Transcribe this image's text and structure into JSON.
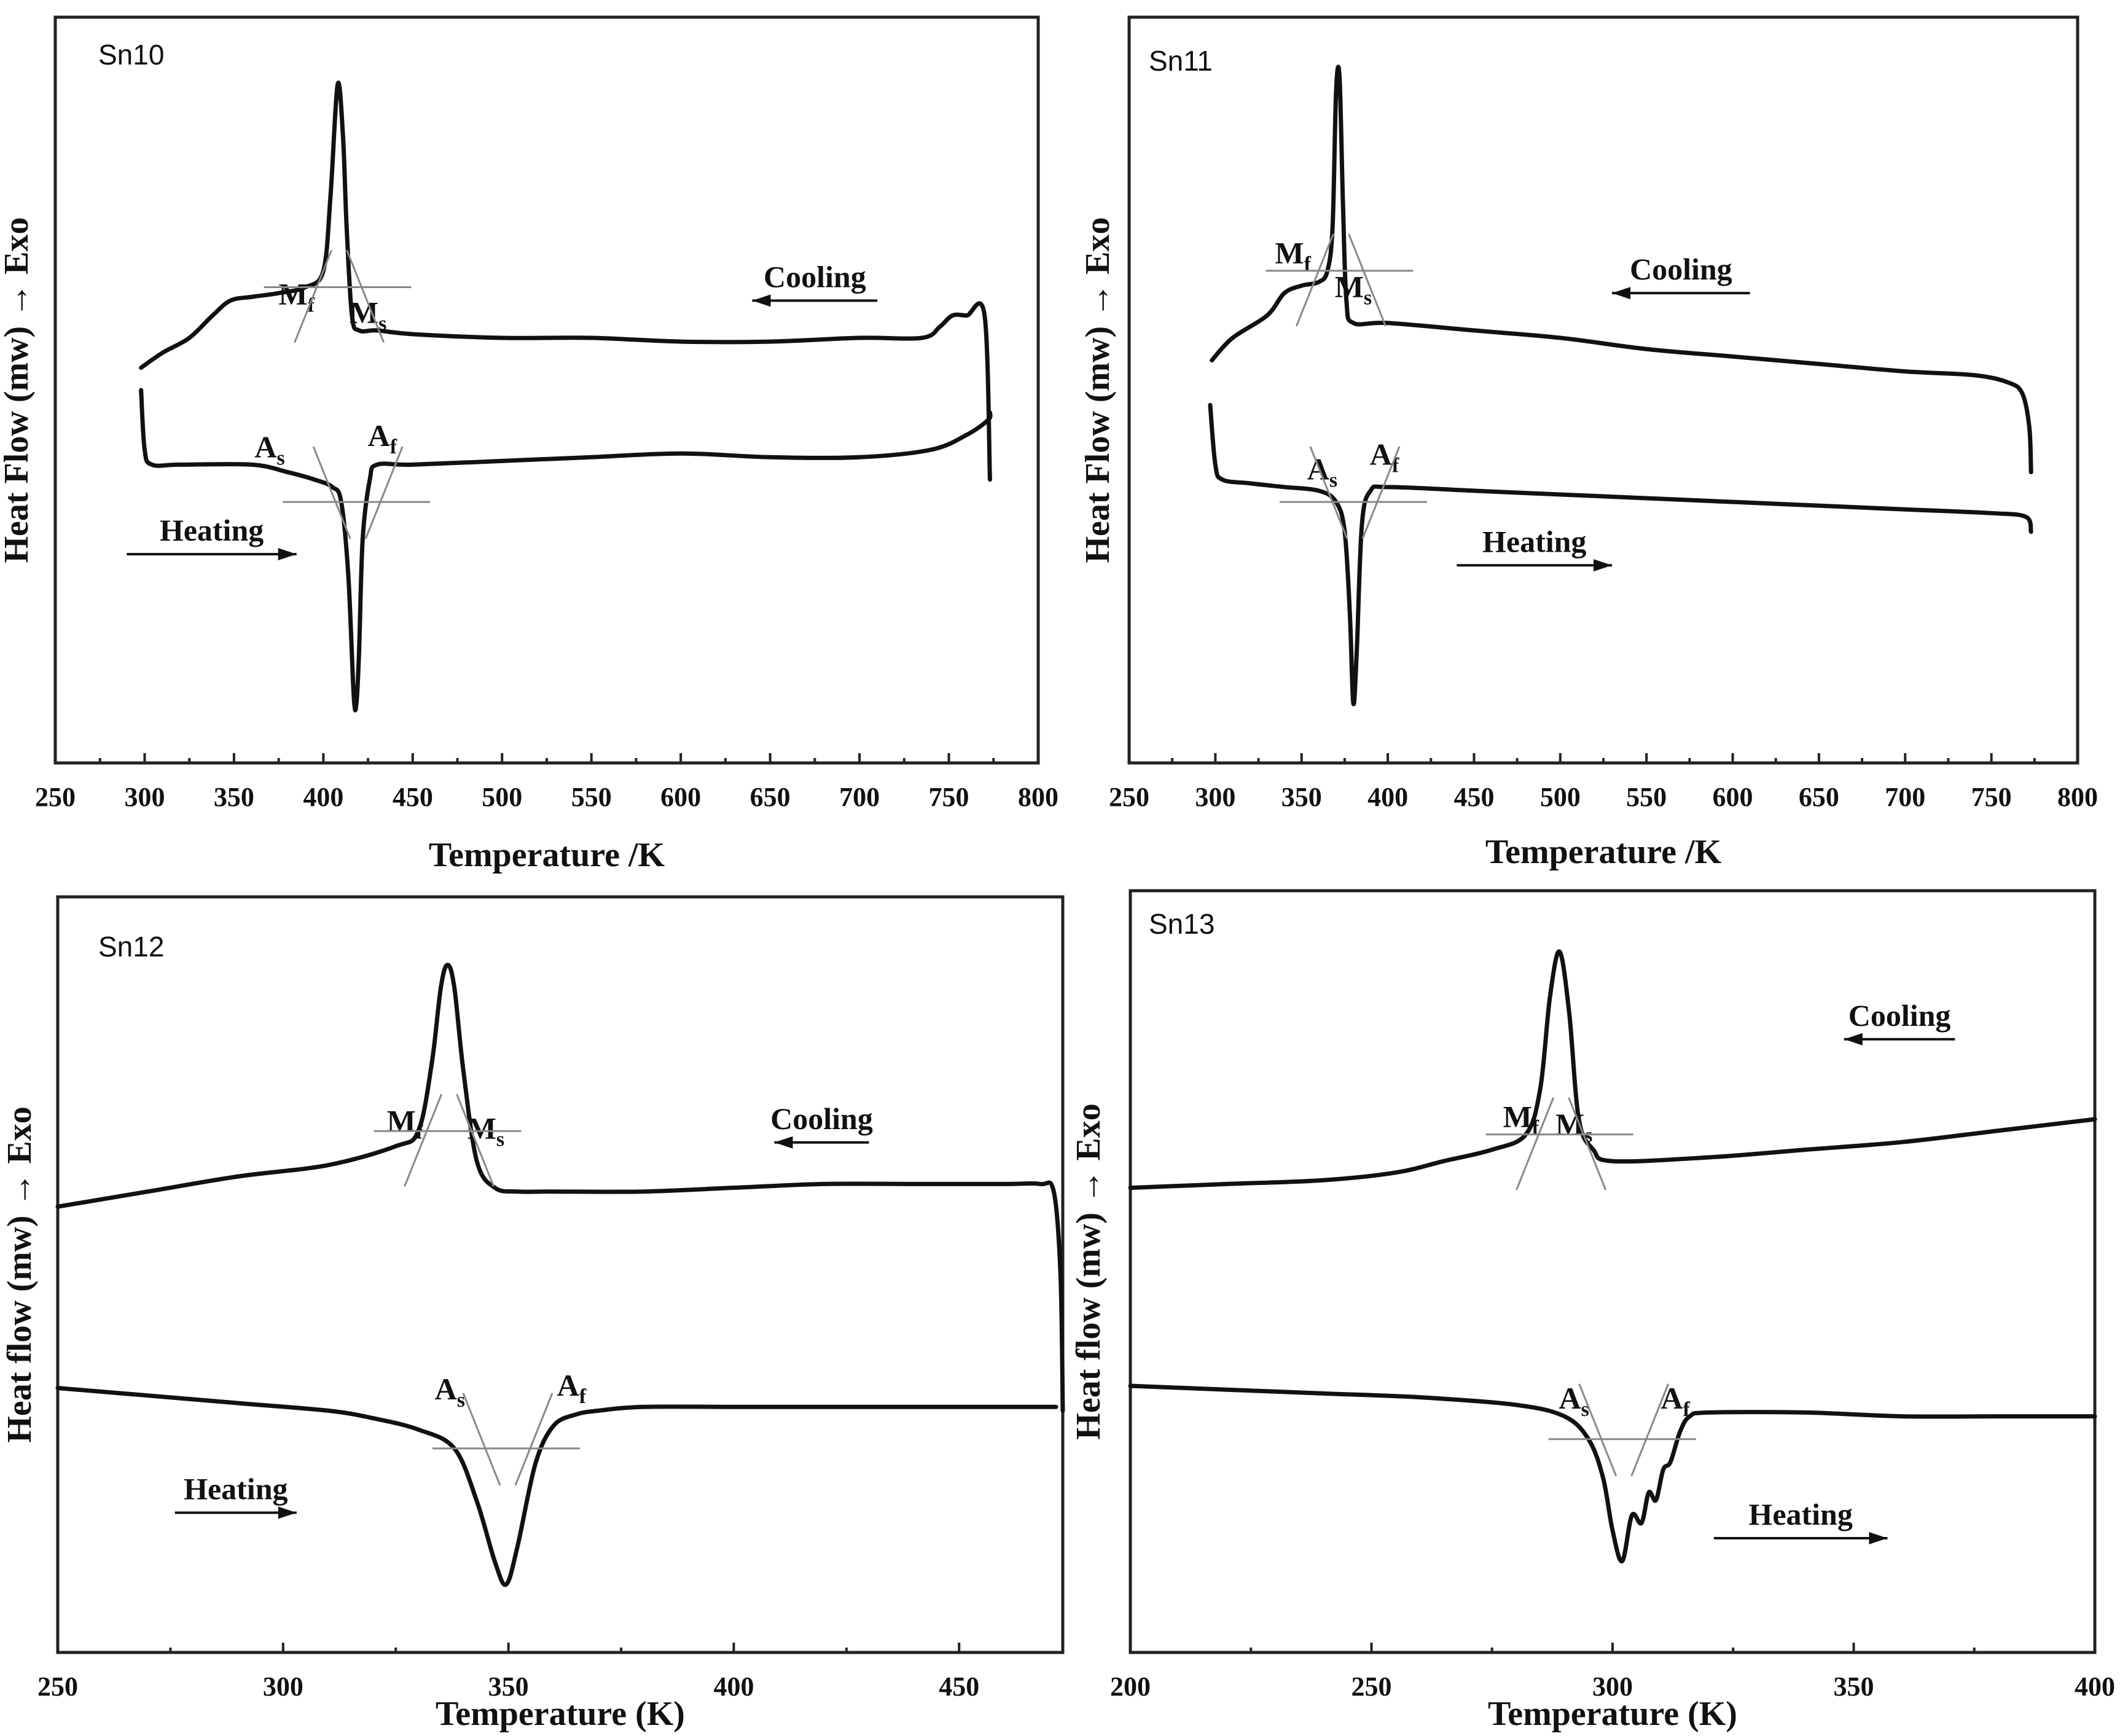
{
  "chart_data": [
    {
      "type": "line",
      "panel": "Sn10",
      "xlabel": "Temperature /K",
      "ylabel": "Heat Flow (mw) → Exo",
      "xlim": [
        250,
        800
      ],
      "xticks": [
        250,
        300,
        350,
        400,
        450,
        500,
        550,
        600,
        650,
        700,
        750,
        800
      ],
      "ylim": [
        0,
        100
      ],
      "annotations": [
        {
          "base": "M",
          "sub": "f",
          "x": 385,
          "y": 61.5
        },
        {
          "base": "M",
          "sub": "s",
          "x": 425,
          "y": 59
        },
        {
          "base": "A",
          "sub": "s",
          "x": 370,
          "y": 41
        },
        {
          "base": "A",
          "sub": "f",
          "x": 433,
          "y": 42.5
        }
      ],
      "arrows": [
        {
          "label": "Cooling",
          "direction": "left",
          "x_from": 710,
          "x_to": 640,
          "y": 62
        },
        {
          "label": "Heating",
          "direction": "right",
          "x_from": 290,
          "x_to": 385,
          "y": 28
        }
      ],
      "series": [
        {
          "name": "Cooling",
          "x": [
            298,
            310,
            325,
            338,
            348,
            360,
            375,
            390,
            400,
            404,
            408,
            411,
            413,
            416,
            420,
            430,
            450,
            500,
            550,
            600,
            650,
            700,
            735,
            745,
            752,
            760,
            770,
            773
          ],
          "y": [
            53,
            55,
            57,
            60,
            62,
            62.5,
            63,
            63.8,
            66,
            76,
            91,
            84,
            72,
            60,
            58,
            58,
            57.5,
            57,
            57,
            56.5,
            56.5,
            57,
            57,
            58.5,
            60,
            60,
            60,
            38
          ]
        },
        {
          "name": "Heating",
          "x": [
            298,
            300,
            304,
            320,
            360,
            380,
            395,
            405,
            410,
            414,
            417,
            418.5,
            420,
            422,
            426,
            430,
            450,
            500,
            550,
            600,
            650,
            700,
            740,
            760,
            772,
            773
          ],
          "y": [
            50,
            42,
            40,
            40,
            40,
            39,
            38,
            37,
            35,
            25,
            9,
            8,
            15,
            30,
            38,
            40,
            40,
            40.5,
            41,
            41.5,
            41,
            41,
            42,
            44,
            46,
            47
          ]
        }
      ]
    },
    {
      "type": "line",
      "panel": "Sn11",
      "xlabel": "Temperature /K",
      "ylabel": "Heat Flow (mw) → Exo",
      "xlim": [
        250,
        800
      ],
      "xticks": [
        250,
        300,
        350,
        400,
        450,
        500,
        550,
        600,
        650,
        700,
        750,
        800
      ],
      "ylim": [
        0,
        100
      ],
      "annotations": [
        {
          "base": "M",
          "sub": "f",
          "x": 345,
          "y": 67
        },
        {
          "base": "M",
          "sub": "s",
          "x": 380,
          "y": 62.5
        },
        {
          "base": "A",
          "sub": "s",
          "x": 362,
          "y": 38
        },
        {
          "base": "A",
          "sub": "f",
          "x": 398,
          "y": 40
        }
      ],
      "arrows": [
        {
          "label": "Cooling",
          "direction": "left",
          "x_from": 610,
          "x_to": 530,
          "y": 63
        },
        {
          "label": "Heating",
          "direction": "right",
          "x_from": 440,
          "x_to": 530,
          "y": 26.5
        }
      ],
      "series": [
        {
          "name": "Cooling",
          "x": [
            298,
            310,
            330,
            340,
            350,
            360,
            365,
            368,
            370,
            372,
            374,
            376,
            380,
            400,
            450,
            500,
            550,
            600,
            650,
            700,
            740,
            760,
            768,
            772,
            773
          ],
          "y": [
            54,
            57,
            60,
            63,
            64,
            64.5,
            66,
            72,
            90,
            92,
            75,
            62,
            59,
            59,
            58,
            57,
            55.5,
            54.5,
            53.5,
            52.5,
            52,
            51,
            49.5,
            45,
            39
          ]
        },
        {
          "name": "Heating",
          "x": [
            297,
            300,
            304,
            320,
            340,
            360,
            370,
            375,
            378,
            380,
            382,
            385,
            390,
            400,
            450,
            500,
            550,
            600,
            650,
            700,
            750,
            770,
            773
          ],
          "y": [
            48,
            40,
            38,
            37.5,
            37,
            36.5,
            35,
            31,
            20,
            8,
            15,
            32,
            36.5,
            37,
            36.5,
            36,
            35.5,
            35,
            34.5,
            34,
            33.5,
            33,
            31
          ]
        }
      ]
    },
    {
      "type": "line",
      "panel": "Sn12",
      "xlabel": "Temperature (K)",
      "ylabel": "Heat flow (mw) → Exo",
      "xlim": [
        250,
        473
      ],
      "xticks": [
        250,
        300,
        350,
        400,
        450
      ],
      "ylim": [
        0,
        100
      ],
      "annotations": [
        {
          "base": "M",
          "sub": "f",
          "x": 327,
          "y": 69
        },
        {
          "base": "M",
          "sub": "s",
          "x": 345,
          "y": 68
        },
        {
          "base": "A",
          "sub": "s",
          "x": 337,
          "y": 33.5
        },
        {
          "base": "A",
          "sub": "f",
          "x": 364,
          "y": 34
        }
      ],
      "arrows": [
        {
          "label": "Cooling",
          "direction": "left",
          "x_from": 430,
          "x_to": 409,
          "y": 67.5
        },
        {
          "label": "Heating",
          "direction": "right",
          "x_from": 276,
          "x_to": 303,
          "y": 18.5
        }
      ],
      "series": [
        {
          "name": "Cooling",
          "x": [
            250,
            270,
            290,
            310,
            325,
            330,
            333,
            335,
            336.5,
            338,
            340,
            343,
            347,
            352,
            360,
            380,
            400,
            420,
            440,
            460,
            468,
            471,
            472.5,
            473
          ],
          "y": [
            59,
            61,
            63,
            64.5,
            67,
            69,
            78,
            88,
            91,
            88,
            77,
            65,
            61.5,
            61,
            61,
            61,
            61.5,
            62,
            62,
            62,
            62,
            61,
            50,
            32
          ]
        },
        {
          "name": "Heating",
          "x": [
            250,
            270,
            290,
            310,
            320,
            330,
            338,
            343,
            347,
            349.5,
            352,
            356,
            360,
            365,
            370,
            380,
            400,
            420,
            440,
            460,
            471.5
          ],
          "y": [
            35,
            34,
            33,
            32,
            31,
            29.5,
            27,
            20,
            12,
            9,
            14,
            25,
            30,
            31.5,
            32,
            32.5,
            32.5,
            32.5,
            32.5,
            32.5,
            32.5
          ]
        }
      ]
    },
    {
      "type": "line",
      "panel": "Sn13",
      "xlabel": "Temperature (K)",
      "ylabel": "Heat flow (mw) → Exo",
      "xlim": [
        200,
        400
      ],
      "xticks": [
        200,
        250,
        300,
        350,
        400
      ],
      "ylim": [
        0,
        100
      ],
      "annotations": [
        {
          "base": "M",
          "sub": "f",
          "x": 281,
          "y": 69
        },
        {
          "base": "M",
          "sub": "s",
          "x": 292,
          "y": 68
        },
        {
          "base": "A",
          "sub": "s",
          "x": 292,
          "y": 32
        },
        {
          "base": "A",
          "sub": "f",
          "x": 313,
          "y": 32
        }
      ],
      "arrows": [
        {
          "label": "Cooling",
          "direction": "left",
          "x_from": 371,
          "x_to": 348,
          "y": 80.5
        },
        {
          "label": "Heating",
          "direction": "right",
          "x_from": 321,
          "x_to": 357,
          "y": 15
        }
      ],
      "series": [
        {
          "name": "Cooling",
          "x": [
            200,
            220,
            240,
            255,
            265,
            275,
            282,
            285,
            287,
            289,
            291,
            293,
            296,
            300,
            320,
            340,
            360,
            380,
            400
          ],
          "y": [
            61,
            61.5,
            62,
            63,
            64.5,
            66,
            68,
            74,
            86,
            92,
            84,
            70,
            66,
            64.5,
            65,
            66,
            67,
            68.5,
            70
          ]
        },
        {
          "name": "Heating",
          "x": [
            200,
            220,
            240,
            260,
            280,
            290,
            295,
            298,
            300,
            302,
            304,
            306,
            307.5,
            309,
            310.5,
            312,
            314,
            316,
            320,
            340,
            360,
            380,
            400
          ],
          "y": [
            35,
            34.5,
            34,
            33.5,
            32.5,
            31,
            28,
            23,
            16,
            12,
            18,
            17,
            21,
            20,
            24,
            25,
            29,
            31,
            31.5,
            31.5,
            31,
            31,
            31
          ]
        }
      ]
    }
  ]
}
